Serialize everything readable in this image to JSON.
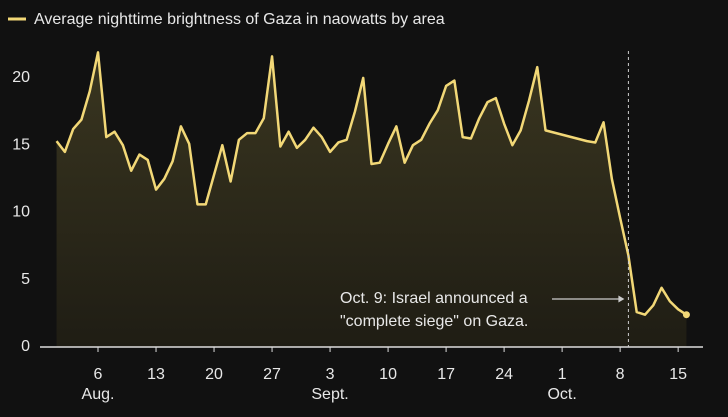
{
  "chart_data": {
    "type": "line",
    "title": "Average nighttime brightness of Gaza in naowatts by area",
    "series": [
      {
        "name": "Average nighttime brightness of Gaza in naowatts by area",
        "color": "#f2d877",
        "x": [
          "08-01",
          "08-02",
          "08-03",
          "08-04",
          "08-05",
          "08-06",
          "08-07",
          "08-08",
          "08-09",
          "08-10",
          "08-11",
          "08-12",
          "08-13",
          "08-14",
          "08-15",
          "08-16",
          "08-17",
          "08-18",
          "08-19",
          "08-20",
          "08-21",
          "08-22",
          "08-23",
          "08-24",
          "08-25",
          "08-26",
          "08-27",
          "08-28",
          "08-29",
          "08-30",
          "08-31",
          "09-01",
          "09-02",
          "09-03",
          "09-04",
          "09-05",
          "09-06",
          "09-07",
          "09-08",
          "09-09",
          "09-10",
          "09-11",
          "09-12",
          "09-13",
          "09-14",
          "09-15",
          "09-16",
          "09-17",
          "09-18",
          "09-19",
          "09-20",
          "09-21",
          "09-22",
          "09-23",
          "09-24",
          "09-25",
          "09-26",
          "09-27",
          "09-28",
          "09-29",
          "10-04",
          "10-05",
          "10-06",
          "10-07",
          "10-08",
          "10-09",
          "10-10",
          "10-11",
          "10-12",
          "10-13",
          "10-14",
          "10-15",
          "10-16"
        ],
        "values": [
          15.3,
          14.5,
          16.2,
          16.9,
          19.0,
          21.9,
          15.6,
          16.0,
          15.0,
          13.1,
          14.3,
          13.9,
          11.7,
          12.5,
          13.8,
          16.4,
          15.1,
          10.6,
          10.6,
          12.8,
          15.0,
          12.3,
          15.4,
          15.9,
          15.9,
          17.0,
          21.6,
          14.9,
          16.0,
          14.8,
          15.4,
          16.3,
          15.6,
          14.5,
          15.2,
          15.4,
          17.5,
          20.0,
          13.6,
          13.7,
          15.1,
          16.4,
          13.7,
          15.0,
          15.4,
          16.6,
          17.6,
          19.4,
          19.8,
          15.6,
          15.5,
          17.0,
          18.2,
          18.5,
          16.6,
          15.0,
          16.1,
          18.3,
          20.8,
          16.1,
          15.3,
          15.2,
          16.7,
          12.5,
          9.6,
          6.8,
          2.6,
          2.4,
          3.1,
          4.4,
          3.4,
          2.8,
          2.4
        ]
      }
    ],
    "xlim": [
      "07-30",
      "10-18"
    ],
    "xticks": [
      {
        "value": "08-06",
        "label": "6",
        "sublabel": "Aug."
      },
      {
        "value": "08-13",
        "label": "13"
      },
      {
        "value": "08-20",
        "label": "20"
      },
      {
        "value": "08-27",
        "label": "27"
      },
      {
        "value": "09-03",
        "label": "3",
        "sublabel": "Sept."
      },
      {
        "value": "09-10",
        "label": "10"
      },
      {
        "value": "09-17",
        "label": "17"
      },
      {
        "value": "09-24",
        "label": "24"
      },
      {
        "value": "10-01",
        "label": "1",
        "sublabel": "Oct."
      },
      {
        "value": "10-08",
        "label": "8"
      },
      {
        "value": "10-15",
        "label": "15"
      }
    ],
    "ylim": [
      0,
      22
    ],
    "yticks": [
      0,
      5,
      10,
      15,
      20
    ],
    "grid": false,
    "annotation": {
      "x": "10-09",
      "text": [
        "Oct. 9: Israel announced a",
        "\"complete siege\" on Gaza."
      ]
    }
  }
}
